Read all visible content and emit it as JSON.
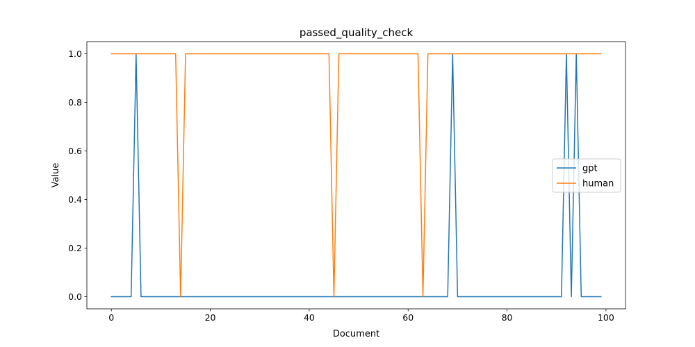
{
  "chart_data": {
    "type": "line",
    "title": "passed_quality_check",
    "xlabel": "Document",
    "ylabel": "Value",
    "xlim": [
      -4.95,
      103.95
    ],
    "ylim": [
      -0.05,
      1.05
    ],
    "xticks": [
      0,
      20,
      40,
      60,
      80,
      100
    ],
    "yticks": [
      0.0,
      0.2,
      0.4,
      0.6,
      0.8,
      1.0
    ],
    "xtick_labels": [
      "0",
      "20",
      "40",
      "60",
      "80",
      "100"
    ],
    "ytick_labels": [
      "0.0",
      "0.2",
      "0.4",
      "0.6",
      "0.8",
      "1.0"
    ],
    "grid": false,
    "legend_position": "center-right",
    "x_start": 0,
    "series": [
      {
        "name": "gpt",
        "color": "#1f77b4",
        "values": [
          0,
          0,
          0,
          0,
          0,
          1,
          0,
          0,
          0,
          0,
          0,
          0,
          0,
          0,
          0,
          0,
          0,
          0,
          0,
          0,
          0,
          0,
          0,
          0,
          0,
          0,
          0,
          0,
          0,
          0,
          0,
          0,
          0,
          0,
          0,
          0,
          0,
          0,
          0,
          0,
          0,
          0,
          0,
          0,
          0,
          0,
          0,
          0,
          0,
          0,
          0,
          0,
          0,
          0,
          0,
          0,
          0,
          0,
          0,
          0,
          0,
          0,
          0,
          0,
          0,
          0,
          0,
          0,
          0,
          1,
          0,
          0,
          0,
          0,
          0,
          0,
          0,
          0,
          0,
          0,
          0,
          0,
          0,
          0,
          0,
          0,
          0,
          0,
          0,
          0,
          0,
          0,
          1,
          0,
          1,
          0,
          0,
          0,
          0,
          0
        ]
      },
      {
        "name": "human",
        "color": "#ff7f0e",
        "values": [
          1,
          1,
          1,
          1,
          1,
          1,
          1,
          1,
          1,
          1,
          1,
          1,
          1,
          1,
          0,
          1,
          1,
          1,
          1,
          1,
          1,
          1,
          1,
          1,
          1,
          1,
          1,
          1,
          1,
          1,
          1,
          1,
          1,
          1,
          1,
          1,
          1,
          1,
          1,
          1,
          1,
          1,
          1,
          1,
          1,
          0,
          1,
          1,
          1,
          1,
          1,
          1,
          1,
          1,
          1,
          1,
          1,
          1,
          1,
          1,
          1,
          1,
          1,
          0,
          1,
          1,
          1,
          1,
          1,
          1,
          1,
          1,
          1,
          1,
          1,
          1,
          1,
          1,
          1,
          1,
          1,
          1,
          1,
          1,
          1,
          1,
          1,
          1,
          1,
          1,
          1,
          1,
          1,
          1,
          1,
          1,
          1,
          1,
          1,
          1
        ]
      }
    ]
  }
}
